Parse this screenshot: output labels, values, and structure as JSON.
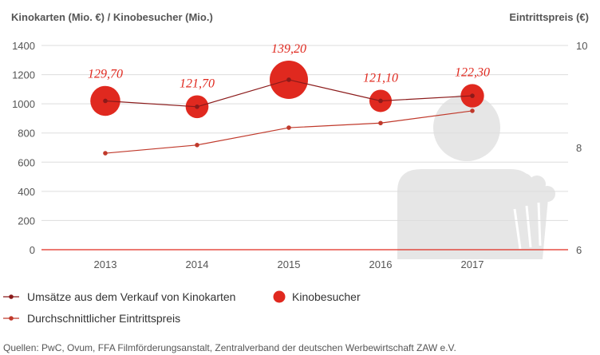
{
  "chart_data": {
    "type": "line",
    "title_left": "Kinokarten (Mio. €) / Kinobesucher (Mio.)",
    "title_right": "Eintrittspreis (€)",
    "categories": [
      "2013",
      "2014",
      "2015",
      "2016",
      "2017"
    ],
    "left_axis": {
      "ylim": [
        0,
        1400
      ],
      "ticks": [
        "0",
        "200",
        "400",
        "600",
        "800",
        "1000",
        "1200",
        "1400"
      ]
    },
    "right_axis": {
      "ylim": [
        6,
        10
      ],
      "ticks": [
        "6",
        "8",
        "10"
      ]
    },
    "series": [
      {
        "name": "Umsätze aus dem Verkauf von Kinokarten",
        "axis": "left",
        "kind": "line",
        "color": "#8b1a1a",
        "values": [
          1020,
          980,
          1165,
          1020,
          1055
        ]
      },
      {
        "name": "Kinobesucher",
        "axis": "left",
        "kind": "bubble",
        "color": "#e0291f",
        "values": [
          129.7,
          121.7,
          139.2,
          121.1,
          122.3
        ],
        "labels": [
          "129,70",
          "121,70",
          "139,20",
          "121,10",
          "122,30"
        ]
      },
      {
        "name": "Durchschnittlicher Eintrittspreis",
        "axis": "right",
        "kind": "line",
        "color": "#c0392b",
        "values": [
          7.89,
          8.05,
          8.39,
          8.48,
          8.72
        ]
      }
    ],
    "legend": [
      {
        "label": "Umsätze aus dem Verkauf von Kinokarten",
        "marker": "line-dot"
      },
      {
        "label": "Kinobesucher",
        "marker": "circle"
      },
      {
        "label": "Durchschnittlicher Eintrittspreis",
        "marker": "line-dot"
      }
    ],
    "source": "Quellen: PwC, Ovum, FFA Filmförderungsanstalt, Zentralverband der deutschen Werbewirtschaft ZAW e.V."
  },
  "colors": {
    "accent": "#e0291f",
    "dark_line": "#8b1a1a",
    "price_line": "#c0392b",
    "grid": "#dddddd",
    "watermark": "#e4e4e4"
  }
}
